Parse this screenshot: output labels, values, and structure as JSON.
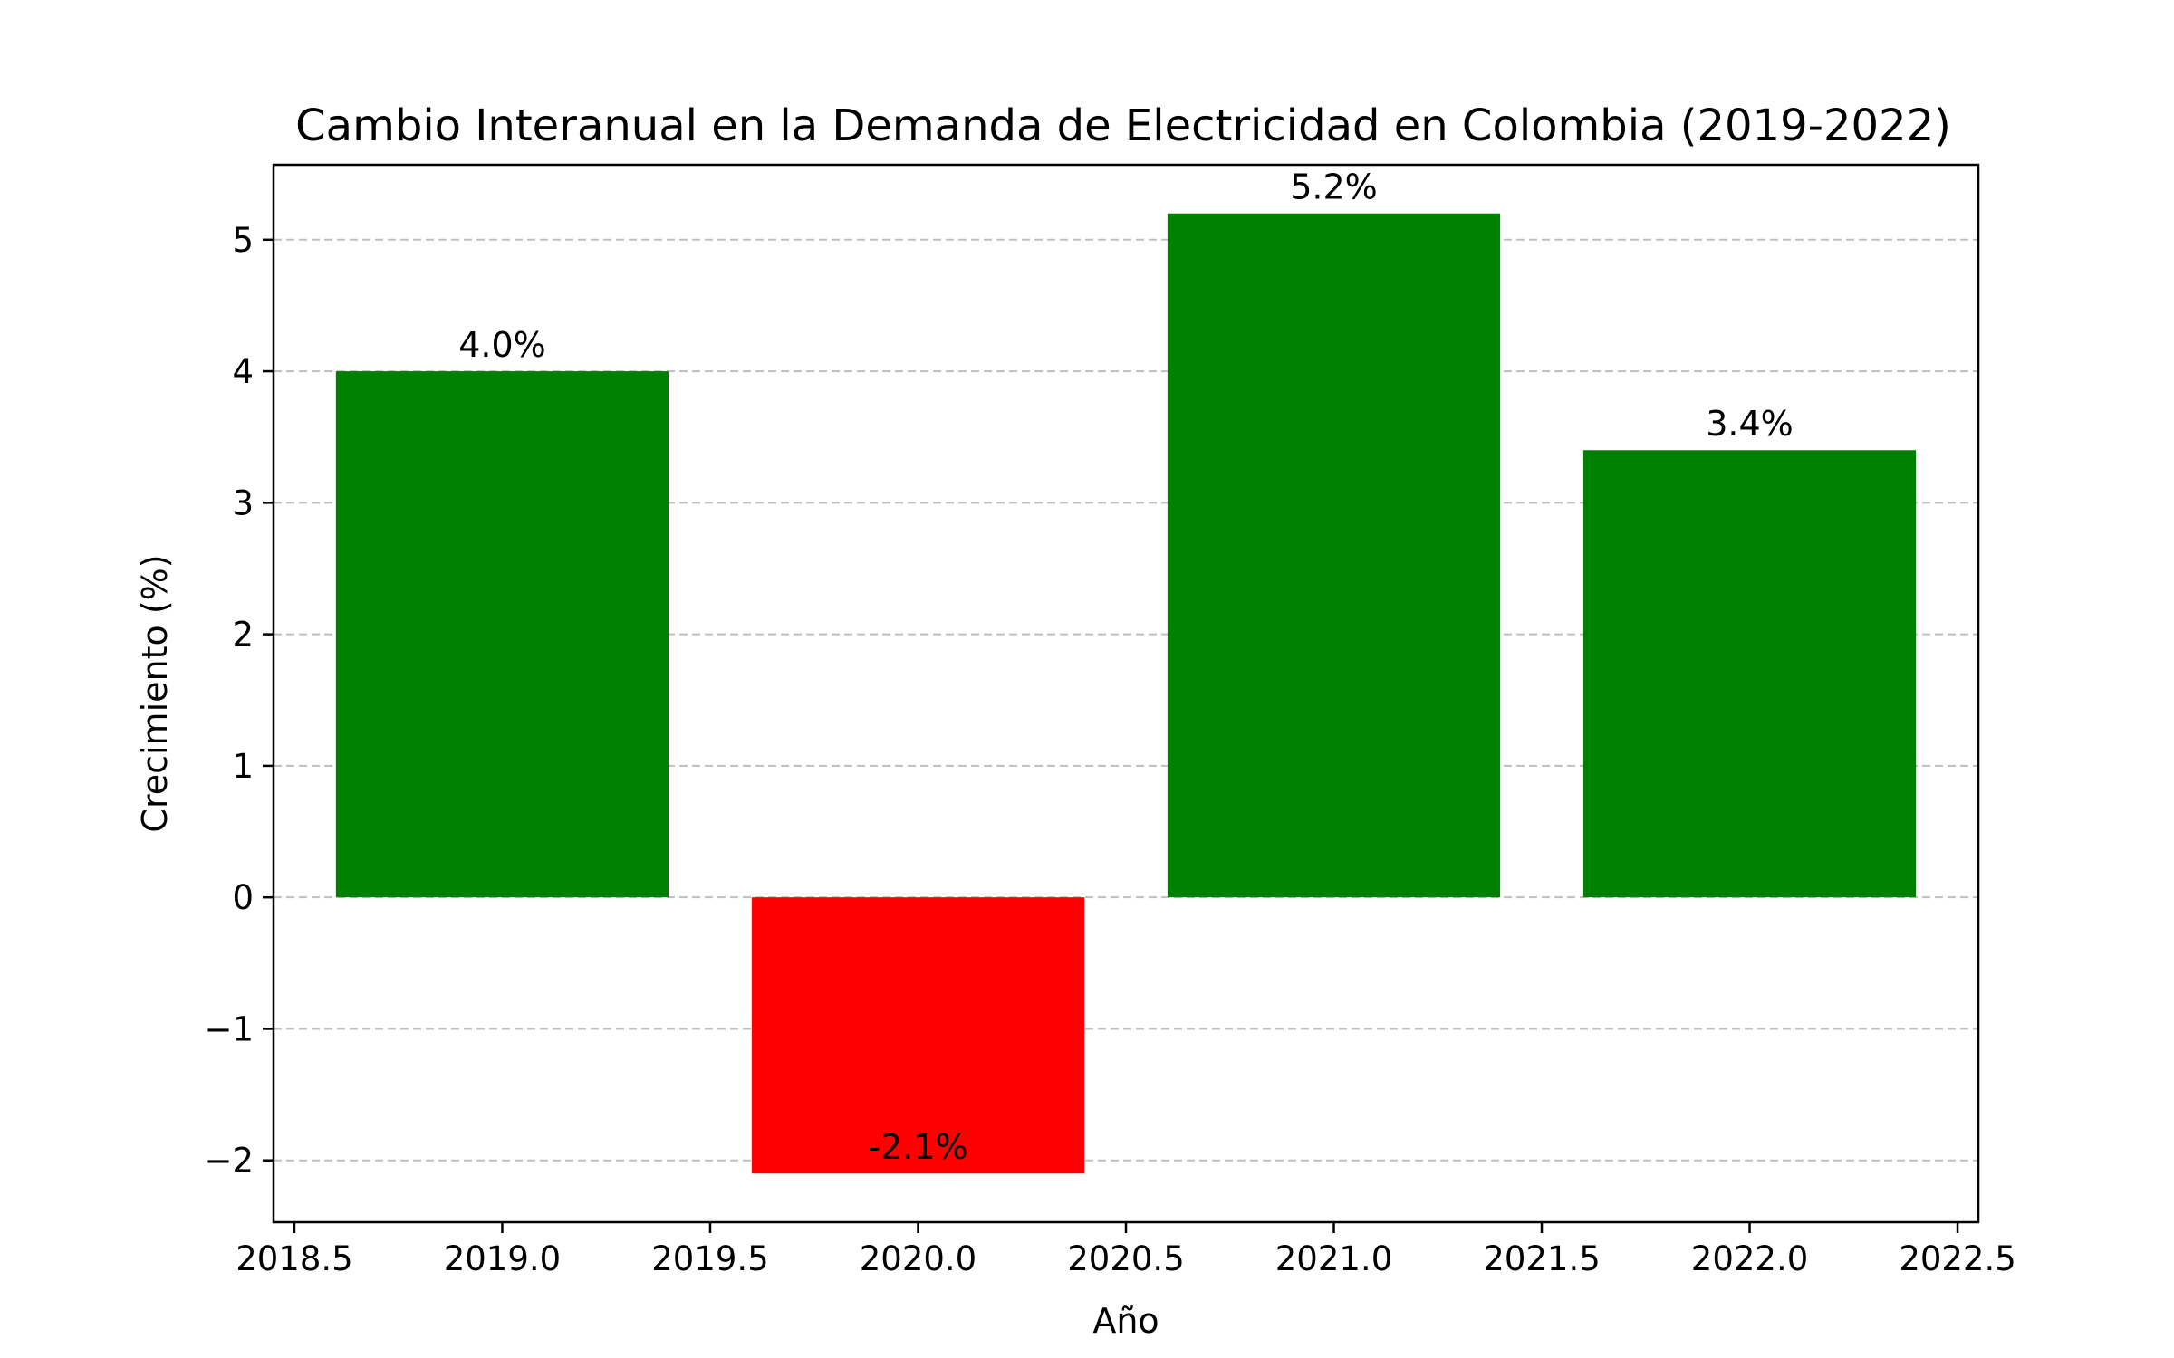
{
  "chart_data": {
    "type": "bar",
    "title": "Cambio Interanual en la Demanda de Electricidad en Colombia (2019-2022)",
    "xlabel": "Año",
    "ylabel": "Crecimiento (%)",
    "x": [
      2019,
      2020,
      2021,
      2022
    ],
    "values": [
      4.0,
      -2.1,
      5.2,
      3.4
    ],
    "data_labels": [
      "4.0%",
      "-2.1%",
      "5.2%",
      "3.4%"
    ],
    "bar_width": 0.8,
    "colors": [
      "#008000",
      "#ff0000",
      "#008000",
      "#008000"
    ],
    "xlim": [
      2018.45,
      2022.55
    ],
    "ylim": [
      -2.47,
      5.57
    ],
    "xticks": [
      2018.5,
      2019.0,
      2019.5,
      2020.0,
      2020.5,
      2021.0,
      2021.5,
      2022.0,
      2022.5
    ],
    "xtick_labels": [
      "2018.5",
      "2019.0",
      "2019.5",
      "2020.0",
      "2020.5",
      "2021.0",
      "2021.5",
      "2022.0",
      "2022.5"
    ],
    "yticks": [
      -2,
      -1,
      0,
      1,
      2,
      3,
      4,
      5
    ],
    "ytick_labels": [
      "−2",
      "−1",
      "0",
      "1",
      "2",
      "3",
      "4",
      "5"
    ],
    "grid": "y-dashed",
    "grid_color": "#bfbfbf"
  }
}
